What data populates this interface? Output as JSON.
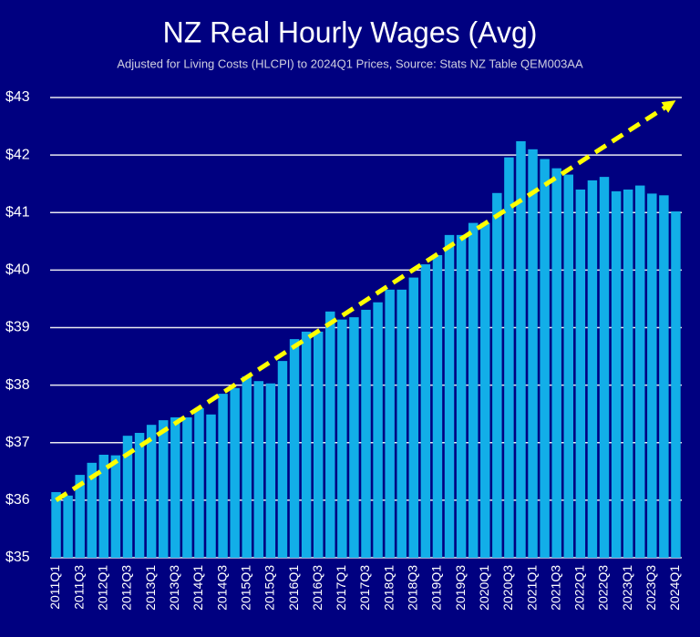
{
  "chart_data": {
    "type": "bar",
    "title": "NZ Real Hourly Wages (Avg)",
    "subtitle": "Adjusted for Living Costs (HLCPI) to 2024Q1 Prices, Source: Stats NZ Table QEM003AA",
    "categories": [
      "2011Q1",
      null,
      "2011Q3",
      null,
      "2012Q1",
      null,
      "2012Q3",
      null,
      "2013Q1",
      null,
      "2013Q3",
      null,
      "2014Q1",
      null,
      "2014Q3",
      null,
      "2015Q1",
      null,
      "2015Q3",
      null,
      "2016Q1",
      null,
      "2016Q3",
      null,
      "2017Q1",
      null,
      "2017Q3",
      null,
      "2018Q1",
      null,
      "2018Q3",
      null,
      "2019Q1",
      null,
      "2019Q3",
      null,
      "2020Q1",
      null,
      "2020Q3",
      null,
      "2021Q1",
      null,
      "2021Q3",
      null,
      "2022Q1",
      null,
      "2022Q3",
      null,
      "2023Q1",
      null,
      "2023Q3",
      null,
      "2024Q1"
    ],
    "values": [
      36.14,
      36.08,
      36.44,
      36.65,
      36.79,
      36.78,
      37.12,
      37.17,
      37.31,
      37.39,
      37.44,
      37.44,
      37.6,
      37.49,
      37.85,
      37.95,
      38.15,
      38.07,
      38.03,
      38.42,
      38.8,
      38.93,
      38.93,
      39.28,
      39.14,
      39.18,
      39.31,
      39.44,
      39.66,
      39.66,
      39.87,
      40.1,
      40.26,
      40.61,
      40.61,
      40.82,
      40.82,
      41.34,
      41.96,
      42.24,
      42.1,
      41.93,
      41.77,
      41.66,
      41.4,
      41.56,
      41.62,
      41.37,
      41.4,
      41.47,
      41.33,
      41.3,
      41.02
    ],
    "color": "#12aee8",
    "ylim": [
      35,
      43
    ],
    "yticks": [
      {
        "value": 35,
        "label": "$35"
      },
      {
        "value": 36,
        "label": "$36"
      },
      {
        "value": 37,
        "label": "$37"
      },
      {
        "value": 38,
        "label": "$38"
      },
      {
        "value": 39,
        "label": "$39"
      },
      {
        "value": 40,
        "label": "$40"
      },
      {
        "value": 41,
        "label": "$41"
      },
      {
        "value": 42,
        "label": "$42"
      },
      {
        "value": 43,
        "label": "$43"
      }
    ],
    "grid": true,
    "trend_line": {
      "x": [
        "2011Q1",
        "2024Q1"
      ],
      "values": [
        36.0,
        42.95
      ],
      "color": "#ffff00"
    }
  }
}
